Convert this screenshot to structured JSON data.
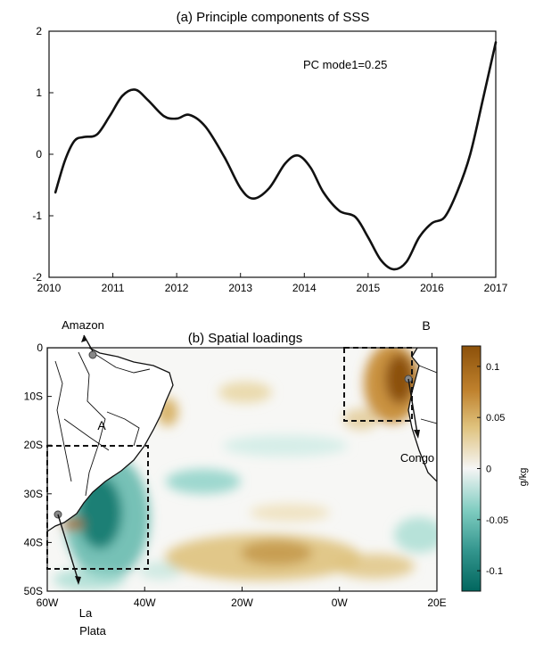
{
  "chart_data": [
    {
      "type": "line",
      "title": "(a) Principle components of SSS",
      "annotation": "PC  mode1=0.25",
      "xlabel": "",
      "ylabel": "",
      "xlim": [
        2010,
        2017
      ],
      "ylim": [
        -2,
        2
      ],
      "xticks": [
        "2010",
        "2011",
        "2012",
        "2013",
        "2014",
        "2015",
        "2016",
        "2017"
      ],
      "yticks": [
        "-2",
        "-1",
        "0",
        "1",
        "2"
      ],
      "series": [
        {
          "name": "PC mode1",
          "x": [
            2010.1,
            2010.25,
            2010.4,
            2010.55,
            2010.75,
            2010.95,
            2011.15,
            2011.35,
            2011.55,
            2011.8,
            2012.0,
            2012.2,
            2012.45,
            2012.75,
            2013.0,
            2013.2,
            2013.45,
            2013.7,
            2013.9,
            2014.1,
            2014.3,
            2014.55,
            2014.8,
            2015.0,
            2015.2,
            2015.4,
            2015.6,
            2015.8,
            2016.0,
            2016.2,
            2016.4,
            2016.6,
            2016.8,
            2017.0
          ],
          "values": [
            -0.62,
            -0.1,
            0.22,
            0.28,
            0.32,
            0.62,
            0.95,
            1.05,
            0.88,
            0.62,
            0.58,
            0.64,
            0.45,
            -0.05,
            -0.55,
            -0.72,
            -0.55,
            -0.15,
            -0.02,
            -0.22,
            -0.62,
            -0.92,
            -1.02,
            -1.35,
            -1.72,
            -1.87,
            -1.75,
            -1.35,
            -1.12,
            -1.02,
            -0.6,
            0.0,
            0.9,
            1.82
          ]
        }
      ]
    },
    {
      "type": "heatmap",
      "title": "(b) Spatial loadings",
      "xticks": [
        "60W",
        "40W",
        "20W",
        "0W",
        "20E"
      ],
      "yticks": [
        "0",
        "10S",
        "20S",
        "30S",
        "40S",
        "50S"
      ],
      "xlim": [
        -60,
        20
      ],
      "ylim": [
        -50,
        0
      ],
      "colorbar": {
        "label": "g/kg",
        "range": [
          -0.12,
          0.12
        ],
        "ticks": [
          "0.1",
          "0.05",
          "0",
          "-0.05",
          "-0.1"
        ],
        "colors": {
          "high": "#8c510a",
          "mid_high": "#dfc27d",
          "zero": "#f5f5f5",
          "mid_low": "#80cdc1",
          "low": "#01665e"
        }
      },
      "regions": [
        {
          "name": "Amazon",
          "type": "river outlet"
        },
        {
          "name": "La Plata",
          "type": "river outlet"
        },
        {
          "name": "Congo",
          "type": "river outlet"
        },
        {
          "name": "A",
          "type": "box"
        },
        {
          "name": "B",
          "type": "box"
        }
      ],
      "labels": {
        "amazon": "Amazon",
        "la": "La",
        "plata": "Plata",
        "congo": "Congo",
        "box_a": "A",
        "box_b": "B"
      }
    }
  ]
}
